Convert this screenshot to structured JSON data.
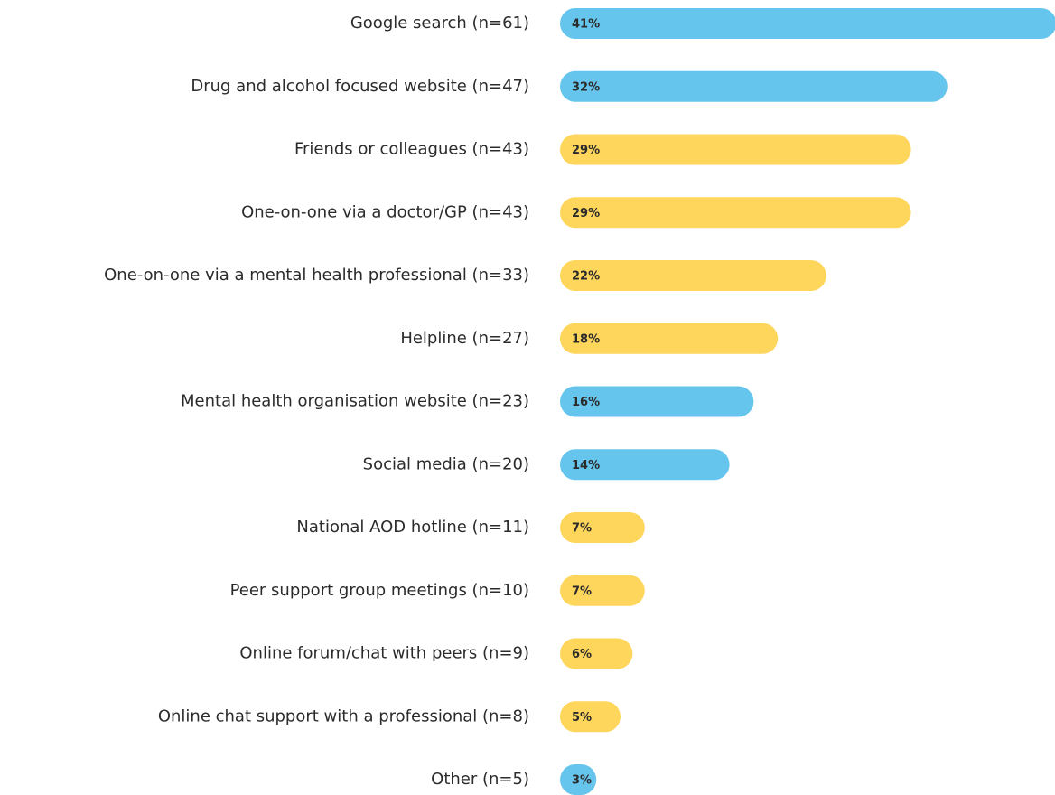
{
  "chart_data": {
    "type": "bar",
    "orientation": "horizontal",
    "categories": [
      "Google search (n=61)",
      "Drug and alcohol focused website (n=47)",
      "Friends or colleagues (n=43)",
      "One-on-one via a doctor/GP (n=43)",
      "One-on-one via a mental health professional (n=33)",
      "Helpline (n=27)",
      "Mental health organisation website (n=23)",
      "Social media (n=20)",
      "National AOD hotline (n=11)",
      "Peer support group meetings (n=10)",
      "Online forum/chat with peers (n=9)",
      "Online chat support with a professional (n=8)",
      "Other (n=5)"
    ],
    "values": [
      41,
      32,
      29,
      29,
      22,
      18,
      16,
      14,
      7,
      7,
      6,
      5,
      3
    ],
    "value_labels": [
      "41%",
      "32%",
      "29%",
      "29%",
      "22%",
      "18%",
      "16%",
      "14%",
      "7%",
      "7%",
      "6%",
      "5%",
      "3%"
    ],
    "colors": [
      "#66c5ec",
      "#66c5ec",
      "#ffd65c",
      "#ffd65c",
      "#ffd65c",
      "#ffd65c",
      "#66c5ec",
      "#66c5ec",
      "#ffd65c",
      "#ffd65c",
      "#ffd65c",
      "#ffd65c",
      "#66c5ec"
    ]
  }
}
